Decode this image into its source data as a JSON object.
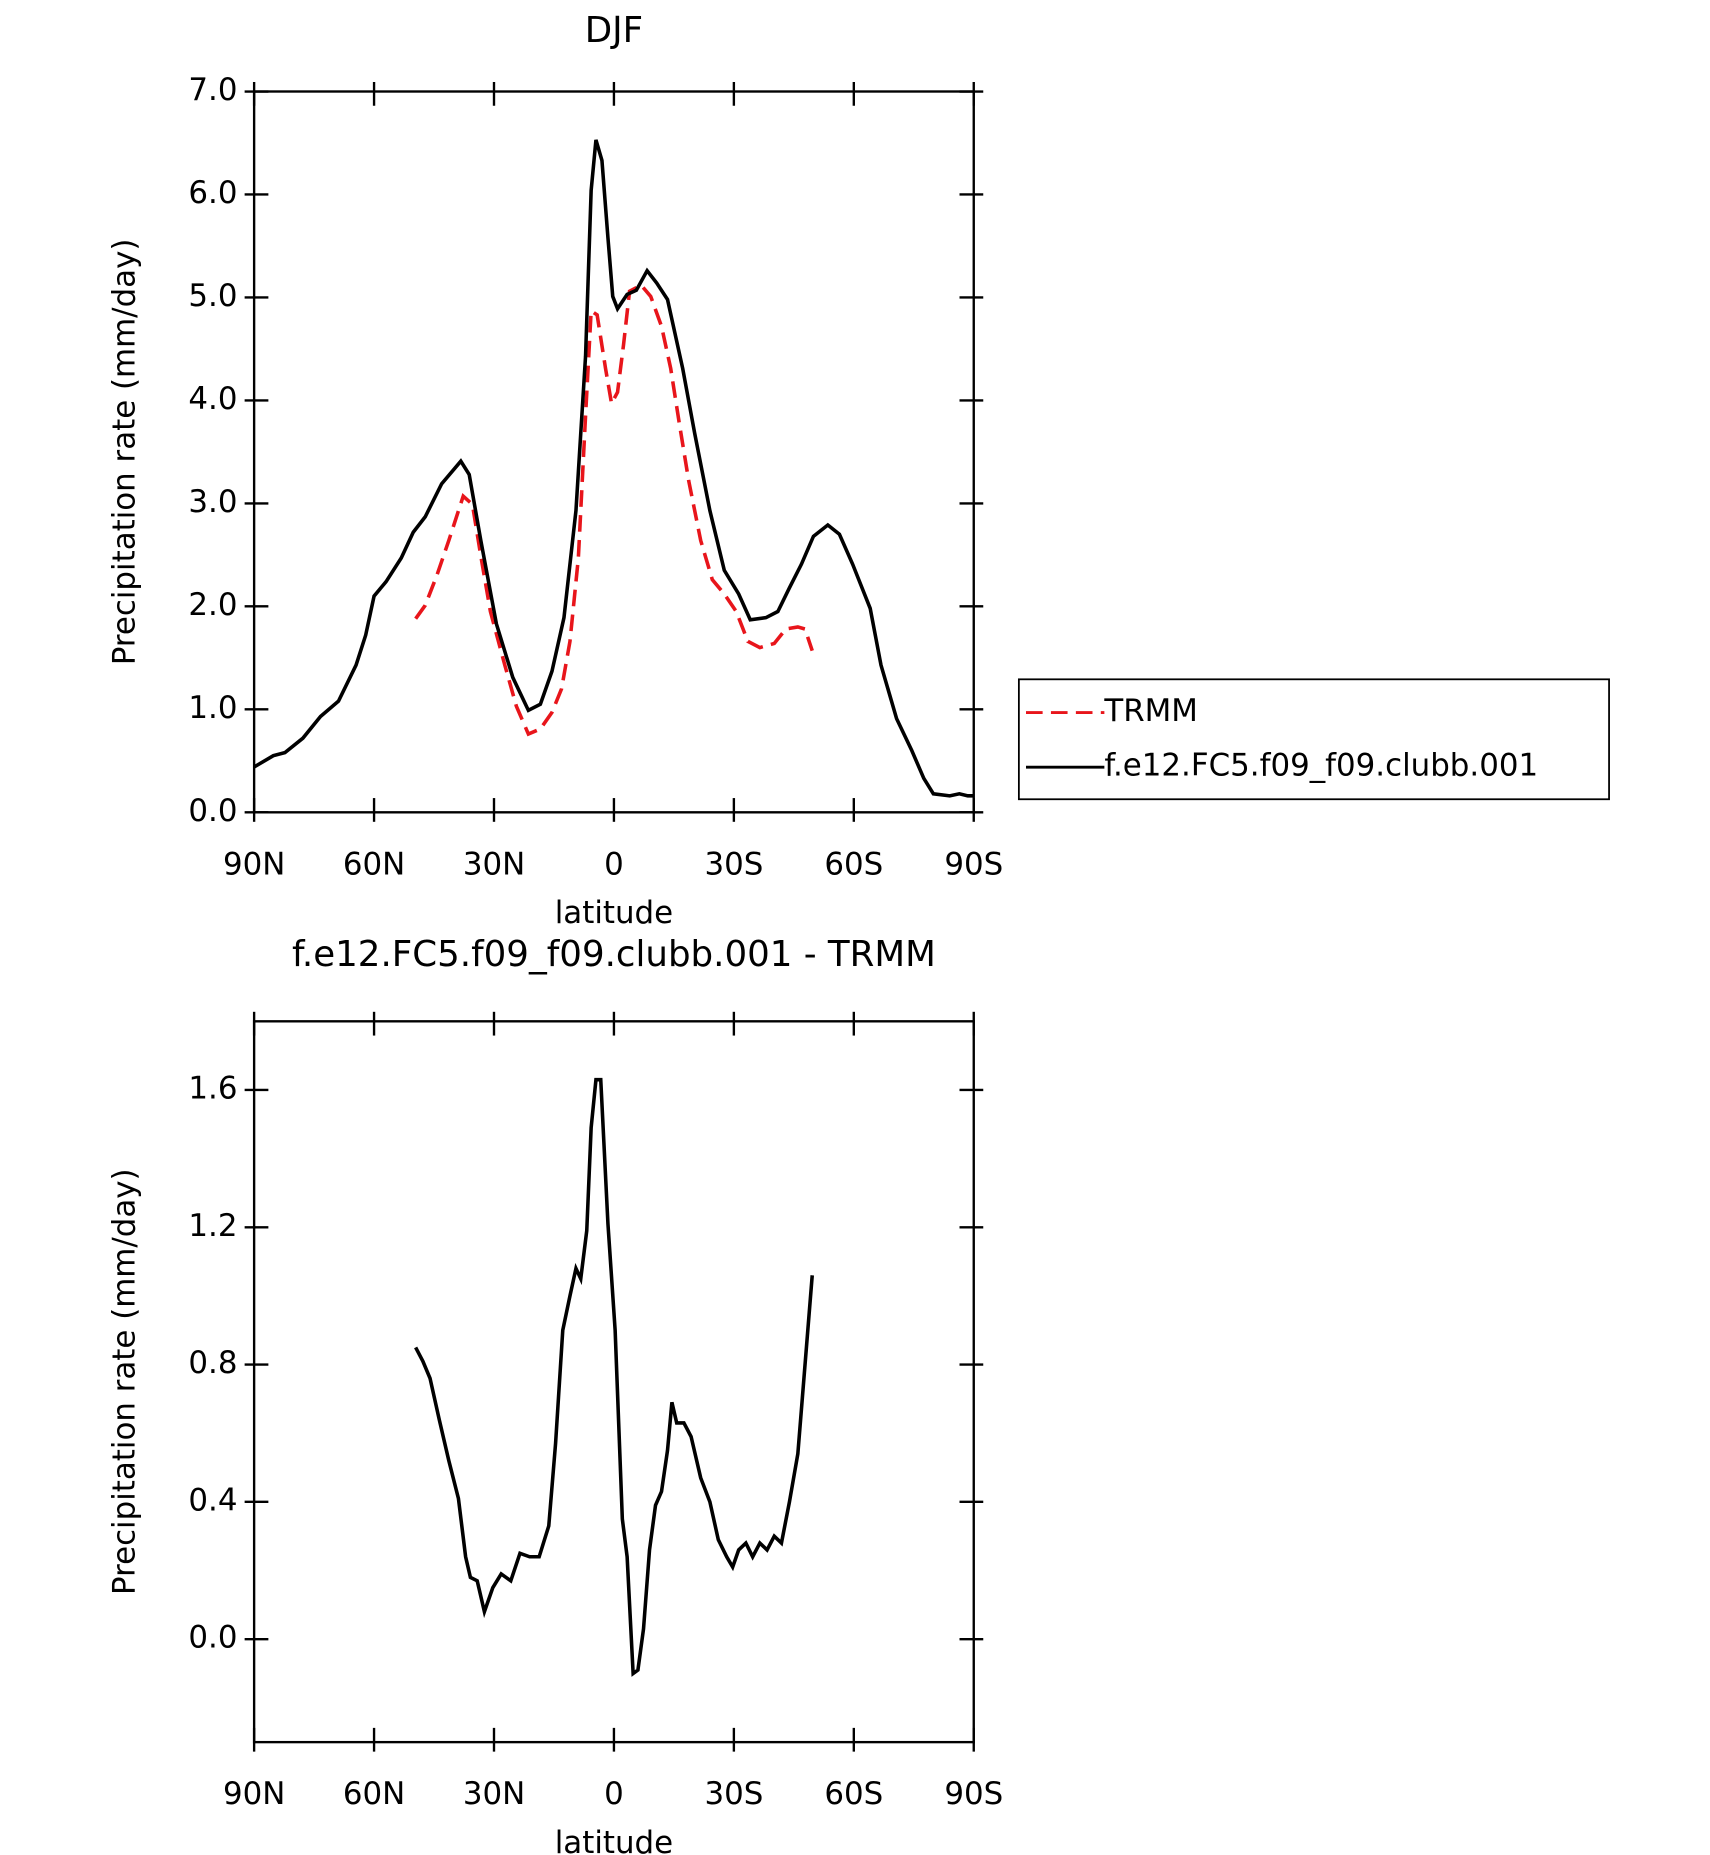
{
  "chart_data": [
    {
      "type": "line",
      "title": "DJF",
      "xlabel": "latitude",
      "ylabel": "Precipitation rate (mm/day)",
      "xlim": [
        90,
        -90
      ],
      "xticks": [
        {
          "value": 90,
          "label": "90N"
        },
        {
          "value": 60,
          "label": "60N"
        },
        {
          "value": 30,
          "label": "30N"
        },
        0,
        {
          "value": -30,
          "label": "30S"
        },
        {
          "value": -60,
          "label": "60S"
        },
        {
          "value": -90,
          "label": "90S"
        }
      ],
      "ylim": [
        0,
        7
      ],
      "yticks": [
        {
          "value": 0,
          "label": "0.0"
        },
        {
          "value": 1,
          "label": "1.0"
        },
        {
          "value": 2,
          "label": "2.0"
        },
        {
          "value": 3,
          "label": "3.0"
        },
        {
          "value": 4,
          "label": "4.0"
        },
        {
          "value": 5,
          "label": "5.0"
        },
        {
          "value": 6,
          "label": "6.0"
        },
        {
          "value": 7,
          "label": "7.0"
        }
      ],
      "legend": "right",
      "series": [
        {
          "name": "TRMM",
          "color": "#e8151b",
          "linestyle": "dashed",
          "x": [
            49.6,
            47.2,
            44.3,
            41.3,
            37.7,
            35.4,
            33.3,
            30.9,
            27.3,
            24.4,
            21.4,
            18.4,
            15.5,
            13.1,
            11.0,
            8.9,
            7.1,
            5.7,
            4.2,
            2.1,
            0.6,
            -0.9,
            -2.4,
            -3.9,
            -6.8,
            -9.2,
            -11.9,
            -14.2,
            -16.3,
            -18.7,
            -21.7,
            -24.6,
            -27.6,
            -30.6,
            -33.5,
            -36.5,
            -40.1,
            -43.0,
            -46.0,
            -47.8,
            -49.6
          ],
          "values": [
            1.88,
            2.01,
            2.3,
            2.64,
            3.07,
            2.99,
            2.49,
            1.95,
            1.43,
            1.03,
            0.76,
            0.81,
            0.97,
            1.2,
            1.66,
            2.47,
            3.85,
            4.87,
            4.83,
            4.31,
            3.97,
            4.08,
            4.54,
            5.06,
            5.12,
            5.01,
            4.72,
            4.31,
            3.79,
            3.22,
            2.64,
            2.26,
            2.12,
            1.95,
            1.66,
            1.6,
            1.64,
            1.78,
            1.8,
            1.78,
            1.57
          ]
        },
        {
          "name": "f.e12.FC5.f09_f09.clubb.001",
          "color": "#000000",
          "linestyle": "solid",
          "x": [
            90,
            85.2,
            82.3,
            77.8,
            73.4,
            68.9,
            64.5,
            62.1,
            60,
            57,
            53.2,
            50.2,
            47.2,
            43.1,
            38.3,
            36.2,
            33.3,
            29.4,
            25.3,
            21.4,
            18.4,
            15.5,
            12.5,
            9.5,
            7.1,
            5.7,
            4.5,
            3.0,
            1.5,
            0.3,
            -0.9,
            -3.3,
            -5.6,
            -8.3,
            -10.7,
            -13.4,
            -17.2,
            -20.2,
            -24.0,
            -27.6,
            -31.2,
            -34.1,
            -38,
            -41,
            -43.9,
            -46.9,
            -49.9,
            -53.5,
            -56.4,
            -59.7,
            -64.1,
            -66.8,
            -70.7,
            -74.5,
            -77.5,
            -79.9,
            -84,
            -86.4,
            -88.5,
            -90
          ],
          "values": [
            0.44,
            0.55,
            0.58,
            0.72,
            0.93,
            1.08,
            1.43,
            1.72,
            2.1,
            2.24,
            2.47,
            2.72,
            2.87,
            3.19,
            3.41,
            3.28,
            2.64,
            1.83,
            1.31,
            0.99,
            1.05,
            1.37,
            1.89,
            2.93,
            4.43,
            6.04,
            6.53,
            6.33,
            5.58,
            5.01,
            4.89,
            5.03,
            5.07,
            5.26,
            5.14,
            4.98,
            4.31,
            3.68,
            2.93,
            2.35,
            2.12,
            1.87,
            1.89,
            1.95,
            2.18,
            2.41,
            2.68,
            2.79,
            2.7,
            2.41,
            1.98,
            1.43,
            0.91,
            0.6,
            0.33,
            0.18,
            0.16,
            0.18,
            0.16,
            0.16
          ]
        }
      ]
    },
    {
      "type": "line",
      "title": "f.e12.FC5.f09_f09.clubb.001 - TRMM",
      "xlabel": "latitude",
      "ylabel": "Precipitation rate (mm/day)",
      "xlim": [
        90,
        -90
      ],
      "xticks": [
        {
          "value": 90,
          "label": "90N"
        },
        {
          "value": 60,
          "label": "60N"
        },
        {
          "value": 30,
          "label": "30N"
        },
        0,
        {
          "value": -30,
          "label": "30S"
        },
        {
          "value": -60,
          "label": "60S"
        },
        {
          "value": -90,
          "label": "90S"
        }
      ],
      "ylim": [
        -0.3,
        1.8
      ],
      "yticks": [
        {
          "value": 0,
          "label": "0.0"
        },
        0.4,
        0.8,
        1.2,
        1.6
      ],
      "series": [
        {
          "color": "#000000",
          "linestyle": "solid",
          "x": [
            49.6,
            47.8,
            46.0,
            43.7,
            41.3,
            38.9,
            37.1,
            35.9,
            34.2,
            32.4,
            30.3,
            28.2,
            25.8,
            23.5,
            21.1,
            18.7,
            16.3,
            14.6,
            12.8,
            11.0,
            9.5,
            8.3,
            6.8,
            5.7,
            4.5,
            3.3,
            1.5,
            -0.3,
            -2.1,
            -3.3,
            -4.8,
            -6.0,
            -7.4,
            -8.9,
            -10.4,
            -11.9,
            -13.4,
            -14.5,
            -15.7,
            -17.5,
            -19.3,
            -21.7,
            -24.0,
            -26.1,
            -28.2,
            -29.7,
            -31.2,
            -33.0,
            -34.7,
            -36.5,
            -38.3,
            -40.1,
            -41.9,
            -43.9,
            -46.0,
            -47.8,
            -49.6
          ],
          "values": [
            0.85,
            0.81,
            0.76,
            0.64,
            0.52,
            0.41,
            0.24,
            0.18,
            0.17,
            0.08,
            0.15,
            0.19,
            0.17,
            0.25,
            0.24,
            0.24,
            0.33,
            0.57,
            0.9,
            1.0,
            1.08,
            1.05,
            1.19,
            1.49,
            1.63,
            1.63,
            1.21,
            0.9,
            0.35,
            0.24,
            -0.1,
            -0.09,
            0.03,
            0.26,
            0.39,
            0.43,
            0.55,
            0.69,
            0.63,
            0.63,
            0.59,
            0.47,
            0.4,
            0.29,
            0.24,
            0.21,
            0.26,
            0.28,
            0.24,
            0.28,
            0.26,
            0.3,
            0.28,
            0.4,
            0.54,
            0.8,
            1.06
          ]
        }
      ]
    }
  ]
}
